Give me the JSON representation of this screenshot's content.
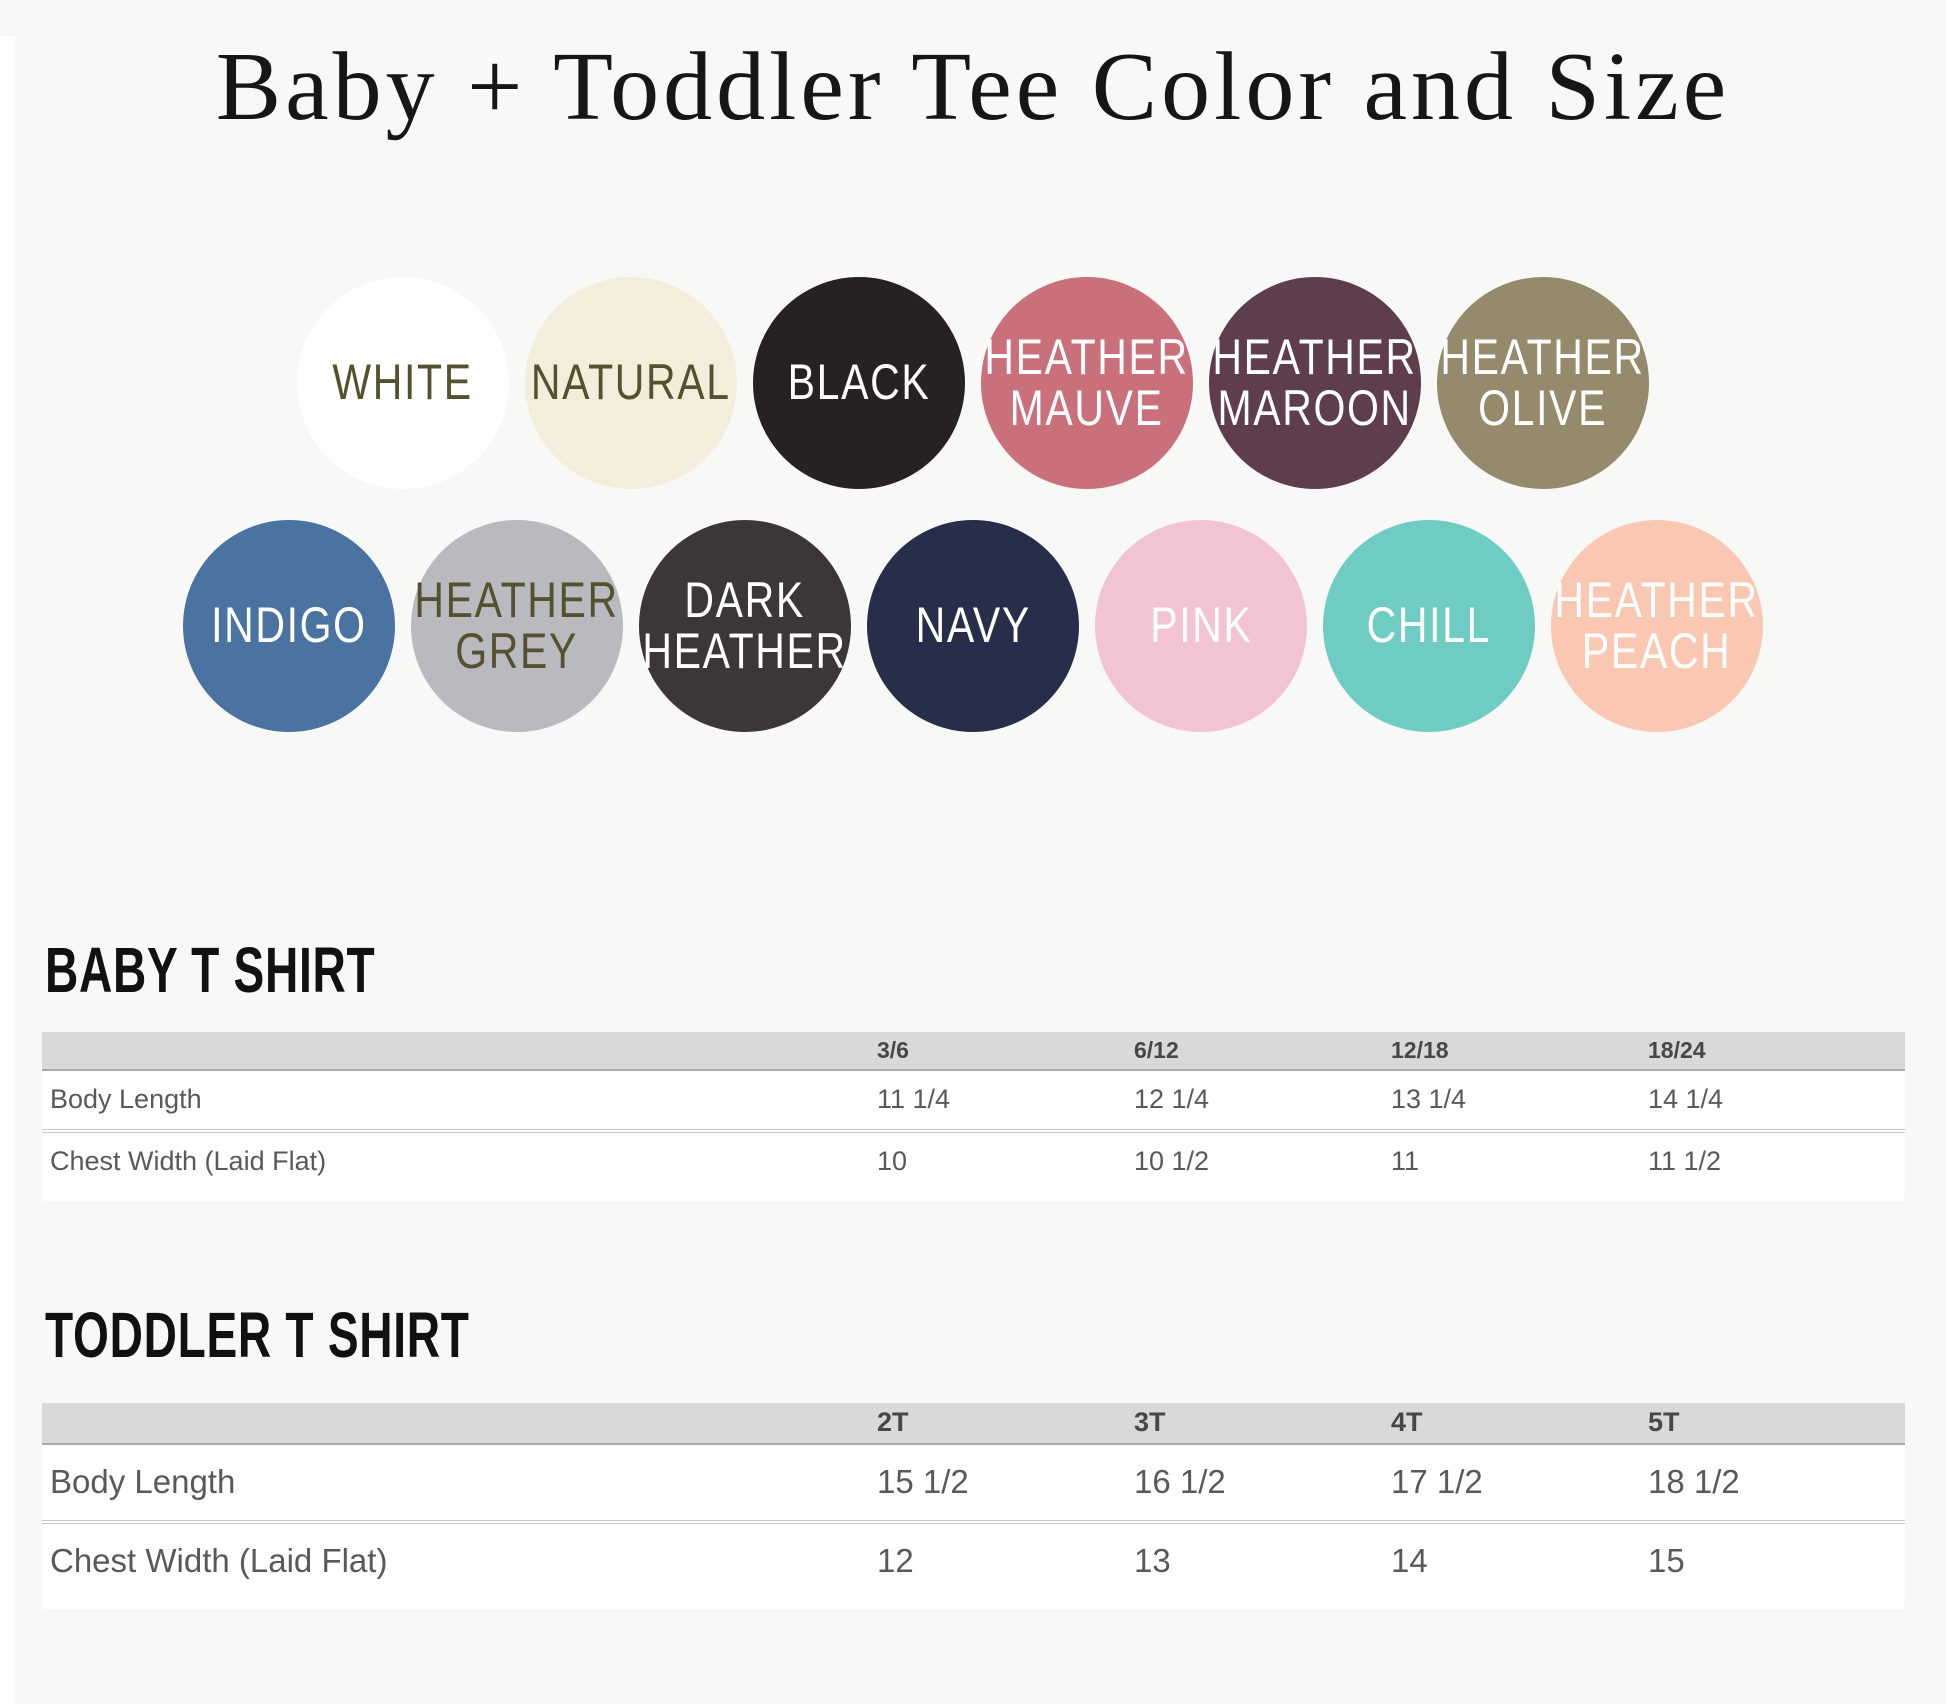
{
  "page": {
    "title": "Baby + Toddler Tee Color and Size"
  },
  "swatches": {
    "row1": [
      {
        "name": "white",
        "lines": [
          "WHITE"
        ],
        "bg": "#ffffff",
        "fg": "#54512f"
      },
      {
        "name": "natural",
        "lines": [
          "NATURAL"
        ],
        "bg": "#f3eedb",
        "fg": "#54512f"
      },
      {
        "name": "black",
        "lines": [
          "BLACK"
        ],
        "bg": "#272124",
        "fg": "#ffffff"
      },
      {
        "name": "heather-mauve",
        "lines": [
          "HEATHER",
          "MAUVE"
        ],
        "bg": "#c9707a",
        "fg": "#ffffff"
      },
      {
        "name": "heather-maroon",
        "lines": [
          "HEATHER",
          "MAROON"
        ],
        "bg": "#5e3e4d",
        "fg": "#ffffff"
      },
      {
        "name": "heather-olive",
        "lines": [
          "HEATHER",
          "OLIVE"
        ],
        "bg": "#958a6b",
        "fg": "#ffffff"
      }
    ],
    "row2": [
      {
        "name": "indigo",
        "lines": [
          "INDIGO"
        ],
        "bg": "#4b73a1",
        "fg": "#ffffff"
      },
      {
        "name": "heather-grey",
        "lines": [
          "HEATHER",
          "GREY"
        ],
        "bg": "#b9babf",
        "fg": "#54512f"
      },
      {
        "name": "dark-heather",
        "lines": [
          "DARK",
          "HEATHER"
        ],
        "bg": "#3c3637",
        "fg": "#ffffff"
      },
      {
        "name": "navy",
        "lines": [
          "NAVY"
        ],
        "bg": "#262e49",
        "fg": "#ffffff"
      },
      {
        "name": "pink",
        "lines": [
          "PINK"
        ],
        "bg": "#f2c4d2",
        "fg": "#ffffff"
      },
      {
        "name": "chill",
        "lines": [
          "CHILL"
        ],
        "bg": "#6fccc2",
        "fg": "#ffffff"
      },
      {
        "name": "heather-peach",
        "lines": [
          "HEATHER",
          "PEACH"
        ],
        "bg": "#f9c7b2",
        "fg": "#ffffff"
      }
    ]
  },
  "baby_section": {
    "heading": "BABY T SHIRT",
    "table": {
      "headers": [
        "",
        "3/6",
        "6/12",
        "12/18",
        "18/24"
      ],
      "rows": [
        {
          "label": "Body Length",
          "values": [
            "11 1/4",
            "12 1/4",
            "13 1/4",
            "14 1/4"
          ]
        },
        {
          "label": "Chest Width (Laid Flat)",
          "values": [
            "10",
            "10 1/2",
            "11",
            "11 1/2"
          ]
        }
      ]
    }
  },
  "toddler_section": {
    "heading": "TODDLER T SHIRT",
    "table": {
      "headers": [
        "",
        "2T",
        "3T",
        "4T",
        "5T"
      ],
      "rows": [
        {
          "label": "Body Length",
          "values": [
            "15 1/2",
            "16 1/2",
            "17 1/2",
            "18 1/2"
          ]
        },
        {
          "label": "Chest Width (Laid Flat)",
          "values": [
            "12",
            "13",
            "14",
            "15"
          ]
        }
      ]
    }
  }
}
